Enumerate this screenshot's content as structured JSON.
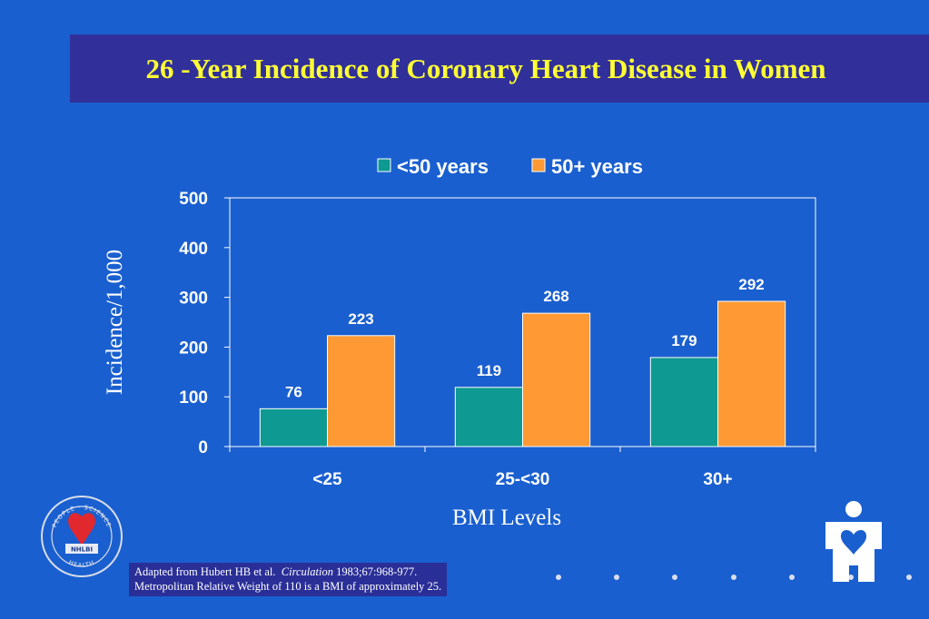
{
  "slide": {
    "title": "26 -Year Incidence of Coronary Heart Disease in Women",
    "footnote": {
      "line1_prefix": "Adapted from Hubert HB et al.",
      "line1_journal": "Circulation",
      "line1_suffix": "1983;67:968-977.",
      "line2": "Metropolitan Relative Weight of 110 is a BMI of approximately 25."
    },
    "seal": {
      "top_text": "PEOPLE · SCIENCE",
      "bottom_text": "HEALTH",
      "center_text": "NHLBI"
    },
    "colors": {
      "background": "#1a5fcf",
      "title_bar": "#31309a",
      "title_text": "#ffff33"
    },
    "icons": [
      "nhlbi-seal-icon",
      "heart-person-icon"
    ]
  },
  "chart_data": {
    "type": "bar",
    "categories": [
      "<25",
      "25-<30",
      "30+"
    ],
    "series": [
      {
        "name": "<50 years",
        "values": [
          76,
          119,
          179
        ],
        "color": "#0e9a92"
      },
      {
        "name": "50+ years",
        "values": [
          223,
          268,
          292
        ],
        "color": "#ff9933"
      }
    ],
    "yticks": [
      "0",
      "100",
      "200",
      "300",
      "400",
      "500"
    ],
    "ylim": [
      0,
      500
    ],
    "xlabel": "BMI Levels",
    "ylabel": "Incidence/1,000",
    "legend_position": "top",
    "grid": false
  }
}
